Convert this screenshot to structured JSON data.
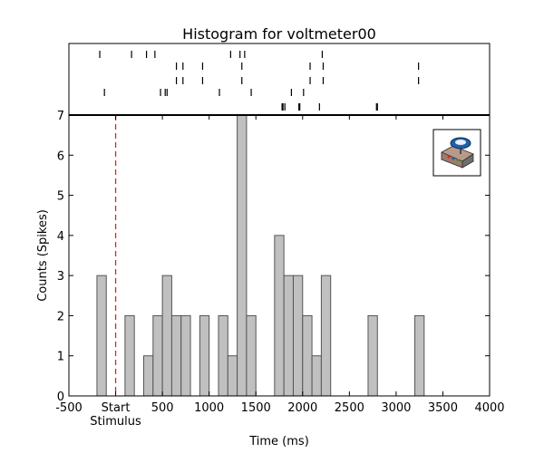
{
  "chart_data": {
    "type": "bar",
    "title": "Histogram for voltmeter00",
    "xlabel": "Time (ms)",
    "ylabel": "Counts (Spikes)",
    "xlim": [
      -500,
      4000
    ],
    "ylim": [
      0,
      7
    ],
    "x_ticks": [
      {
        "value": -500,
        "label": "-500"
      },
      {
        "value": 0,
        "label": "Start"
      },
      {
        "value": 500,
        "label": "500"
      },
      {
        "value": 1000,
        "label": "1000"
      },
      {
        "value": 1500,
        "label": "1500"
      },
      {
        "value": 2000,
        "label": "2000"
      },
      {
        "value": 2500,
        "label": "2500"
      },
      {
        "value": 3000,
        "label": "3000"
      },
      {
        "value": 3500,
        "label": "3500"
      },
      {
        "value": 4000,
        "label": "4000"
      }
    ],
    "x_sublabel": {
      "value": 0,
      "label": "Stimulus"
    },
    "y_ticks": [
      0,
      1,
      2,
      3,
      4,
      5,
      6,
      7
    ],
    "stimulus_line": {
      "x": 0,
      "color": "#d62728",
      "style": "dashed"
    },
    "bin_width": 100,
    "bars": [
      {
        "x": -200,
        "count": 3
      },
      {
        "x": 100,
        "count": 2
      },
      {
        "x": 300,
        "count": 1
      },
      {
        "x": 400,
        "count": 2
      },
      {
        "x": 500,
        "count": 3
      },
      {
        "x": 600,
        "count": 2
      },
      {
        "x": 700,
        "count": 2
      },
      {
        "x": 900,
        "count": 2
      },
      {
        "x": 1100,
        "count": 2
      },
      {
        "x": 1200,
        "count": 1
      },
      {
        "x": 1300,
        "count": 7
      },
      {
        "x": 1400,
        "count": 2
      },
      {
        "x": 1700,
        "count": 4
      },
      {
        "x": 1800,
        "count": 3
      },
      {
        "x": 1900,
        "count": 3
      },
      {
        "x": 2000,
        "count": 2
      },
      {
        "x": 2100,
        "count": 1
      },
      {
        "x": 2200,
        "count": 3
      },
      {
        "x": 2700,
        "count": 2
      },
      {
        "x": 3200,
        "count": 2
      }
    ],
    "bar_color": "#c0c0c0",
    "raster_trials": [
      [
        -170,
        170,
        330,
        420,
        1230,
        1330,
        1380,
        2210
      ],
      [
        650,
        720,
        930,
        1350,
        2080,
        2220,
        3240
      ],
      [
        650,
        720,
        930,
        1350,
        2080,
        2220,
        3240
      ],
      [
        -120,
        480,
        530,
        550,
        1110,
        1450,
        1880,
        2010
      ],
      [
        1780,
        1790,
        1810,
        1960,
        1970,
        2180,
        2790,
        2800
      ]
    ],
    "grid": false,
    "legend": "none"
  },
  "inset_icon": "voltmeter-device-icon"
}
